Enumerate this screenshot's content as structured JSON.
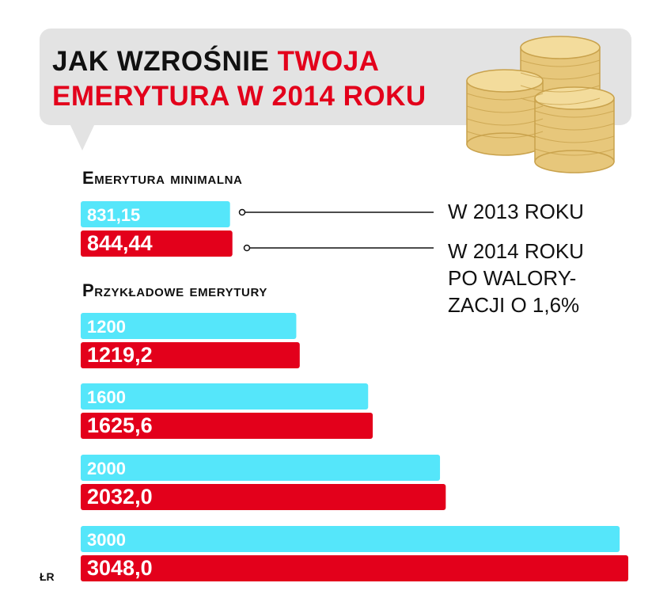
{
  "header": {
    "title_line1_black": "JAK WZROŚNIE ",
    "title_line1_red": "TWOJA",
    "title_line2_red": "EMERYTURA W 2014 ROKU"
  },
  "colors": {
    "year_2013": "#55e6fa",
    "year_2014": "#e3001b",
    "coin": "#e7c77b",
    "bubble": "#e3e3e3"
  },
  "icons": [
    "coin-stack-icon"
  ],
  "legend": {
    "year_2013": "W 2013 ROKU",
    "year_2014": "W 2014 ROKU\nPO WALORY-\nZACJI O 1,6%"
  },
  "footer": "ŁR",
  "chart_data": {
    "type": "bar",
    "orientation": "horizontal",
    "title": "JAK WZROŚNIE TWOJA EMERYTURA W 2014 ROKU",
    "xlim": [
      0,
      3048
    ],
    "groups": [
      {
        "name": "Emerytura minimalna",
        "bars": [
          {
            "series": "W 2013 ROKU",
            "label": "831,15",
            "value": 831.15
          },
          {
            "series": "W 2014 ROKU",
            "label": "844,44",
            "value": 844.44
          }
        ]
      },
      {
        "name": "Przykładowe emerytury",
        "bars": [
          {
            "series": "W 2013 ROKU",
            "label": "1200",
            "value": 1200
          },
          {
            "series": "W 2014 ROKU",
            "label": "1219,2",
            "value": 1219.2
          },
          {
            "series": "W 2013 ROKU",
            "label": "1600",
            "value": 1600
          },
          {
            "series": "W 2014 ROKU",
            "label": "1625,6",
            "value": 1625.6
          },
          {
            "series": "W 2013 ROKU",
            "label": "2000",
            "value": 2000
          },
          {
            "series": "W 2014 ROKU",
            "label": "2032,0",
            "value": 2032.0
          },
          {
            "series": "W 2013 ROKU",
            "label": "3000",
            "value": 3000
          },
          {
            "series": "W 2014 ROKU",
            "label": "3048,0",
            "value": 3048.0
          }
        ]
      }
    ]
  }
}
